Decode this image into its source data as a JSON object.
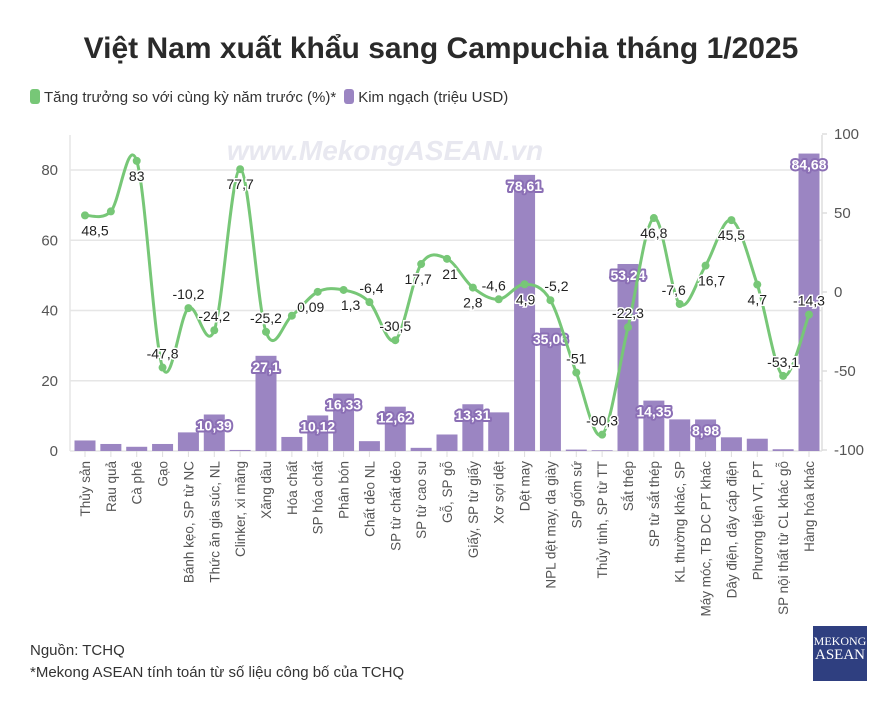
{
  "chart_data": {
    "type": "bar+line",
    "title": "Việt Nam xuất khẩu sang Campuchia tháng 1/2025",
    "categories": [
      "Thủy sản",
      "Rau quả",
      "Cà phê",
      "Gạo",
      "Bánh kẹo, SP từ NC",
      "Thức ăn gia súc, NL",
      "Clinker, xi măng",
      "Xăng dầu",
      "Hóa chất",
      "SP hóa chất",
      "Phân bón",
      "Chất dẻo NL",
      "SP từ chất dẻo",
      "SP từ cao su",
      "Gỗ, SP gỗ",
      "Giấy, SP từ giấy",
      "Xơ sợi dệt",
      "Dệt may",
      "NPL dệt may, da giày",
      "SP gốm sứ",
      "Thủy tinh, SP từ TT",
      "Sắt thép",
      "SP từ sắt thép",
      "KL thường khác, SP",
      "Máy móc, TB DC PT khác",
      "Dây điện, dây cáp điện",
      "Phương tiện VT, PT",
      "SP nội thất từ CL khác gỗ",
      "Hàng hóa khác"
    ],
    "series": [
      {
        "name": "Kim ngạch (triệu USD)",
        "type": "bar",
        "axis": "left",
        "color": "#9b85c2",
        "values": [
          3,
          2,
          1.2,
          2,
          5.3,
          10.39,
          0.3,
          27.1,
          4,
          10.12,
          16.33,
          2.8,
          12.62,
          0.9,
          4.7,
          13.31,
          11,
          78.61,
          35.06,
          0.4,
          0.2,
          53.24,
          14.35,
          9,
          8.98,
          3.9,
          3.5,
          0.5,
          84.68
        ],
        "labels": [
          "",
          "",
          "",
          "",
          "",
          "10,39",
          "",
          "27,1",
          "",
          "10,12",
          "16,33",
          "",
          "12,62",
          "",
          "",
          "13,31",
          "",
          "78,61",
          "35,06",
          "",
          "",
          "53,24",
          "14,35",
          "",
          "8,98",
          "",
          "",
          "",
          "84,68"
        ]
      },
      {
        "name": "Tăng trưởng so với cùng kỳ năm trước (%)*",
        "type": "line",
        "axis": "right",
        "color": "#77c777",
        "values": [
          48.5,
          51,
          83,
          -47.8,
          -10.2,
          -24.2,
          77.7,
          -25.2,
          -15,
          0.09,
          1.3,
          -6.4,
          -30.5,
          17.7,
          21,
          2.8,
          -4.6,
          4.9,
          -5.2,
          -51,
          -90.3,
          -22.3,
          46.8,
          -7.6,
          16.7,
          45.5,
          4.7,
          -53.1,
          -14.3
        ],
        "labels": [
          "48,5",
          "",
          "83",
          "-47,8",
          "-10,2",
          "-24,2",
          "77,7",
          "-25,2",
          "",
          "0,09",
          "1,3",
          "-6,4",
          "-30,5",
          "17,7",
          "21",
          "2,8",
          "-4,6",
          "4,9",
          "-5,2",
          "-51",
          "-90,3",
          "-22,3",
          "46,8",
          "-7,6",
          "16,7",
          "45,5",
          "4,7",
          "-53,1",
          "-14,3"
        ]
      }
    ],
    "y_left": {
      "range": [
        0,
        90
      ],
      "ticks": [
        "0",
        "20",
        "40",
        "60",
        "80"
      ]
    },
    "y_right": {
      "range": [
        -100,
        100
      ],
      "ticks": [
        "-100",
        "-50",
        "0",
        "50",
        "100"
      ]
    },
    "grid": true,
    "legend": "top-left",
    "watermark": "www.MekongASEAN.vn"
  },
  "footer": {
    "source": "Nguồn: TCHQ",
    "note": "*Mekong ASEAN tính toán từ số liệu công bố của TCHQ"
  },
  "logo": {
    "line1": "MEKONG",
    "line2": "ASEAN"
  }
}
